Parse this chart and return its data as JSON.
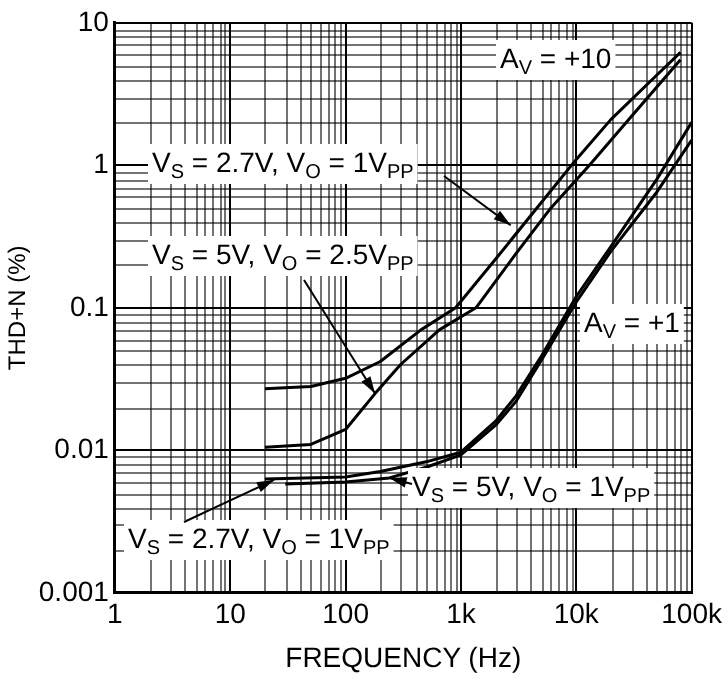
{
  "chart_data": {
    "type": "line",
    "xlabel": "FREQUENCY (Hz)",
    "ylabel": "THD+N (%)",
    "log": "xy",
    "grid": true,
    "legend": false,
    "marker": "none",
    "line_style": "solid",
    "xlim": [
      1,
      100000
    ],
    "ylim": [
      0.001,
      10
    ],
    "xticks": [
      1,
      10,
      100,
      {
        "value": 1000,
        "label": "1k"
      },
      {
        "value": 10000,
        "label": "10k"
      },
      {
        "value": 100000,
        "label": "100k"
      }
    ],
    "yticks": [
      0.001,
      0.01,
      0.1,
      1,
      10
    ],
    "series": [
      {
        "color": "#000000",
        "x": [
          20,
          50,
          100,
          200,
          450,
          900,
          2000,
          5000,
          10000,
          20000,
          50000,
          80000
        ],
        "values": [
          0.027,
          0.028,
          0.032,
          0.042,
          0.07,
          0.1,
          0.22,
          0.55,
          1.1,
          2.1,
          4.3,
          6.2
        ]
      },
      {
        "color": "#000000",
        "x": [
          20,
          50,
          100,
          180,
          300,
          650,
          1350,
          3000,
          6000,
          13000,
          30000,
          80000
        ],
        "values": [
          0.0105,
          0.011,
          0.014,
          0.025,
          0.04,
          0.07,
          0.1,
          0.24,
          0.5,
          1,
          2.2,
          5.5
        ]
      },
      {
        "color": "#000000",
        "x": [
          20,
          100,
          200,
          500,
          1000,
          2000,
          3000,
          5000,
          10000,
          20000,
          50000,
          100000
        ],
        "values": [
          0.0063,
          0.0065,
          0.0071,
          0.0083,
          0.0097,
          0.016,
          0.024,
          0.046,
          0.12,
          0.27,
          0.8,
          2
        ]
      },
      {
        "color": "#000000",
        "x": [
          30,
          100,
          240,
          500,
          1000,
          2000,
          3000,
          5000,
          10000,
          20000,
          50000,
          100000
        ],
        "values": [
          0.0058,
          0.006,
          0.0064,
          0.0076,
          0.0093,
          0.015,
          0.022,
          0.043,
          0.11,
          0.25,
          0.65,
          1.5
        ]
      }
    ],
    "annotations": [
      "A$_{V}$ = +10",
      {
        "text": "V$_{S}$ = 2.7V, V$_{O}$ = 1V$_{PP}$",
        "x": 2700,
        "y": 0.38
      },
      {
        "text": "V$_{S}$ = 5V, V$_{O}$ = 2.5V$_{PP}$",
        "x": 180,
        "y": 0.025
      },
      "A$_{V}$ = +1",
      {
        "text": "V$_{S}$ = 5V, V$_{O}$ = 1V$_{PP}$",
        "x": 240,
        "y": 0.0064
      },
      {
        "text": "V$_{S}$ = 2.7V, V$_{O}$ = 1V$_{PP}$",
        "x": 24,
        "y": 0.0062
      }
    ]
  }
}
